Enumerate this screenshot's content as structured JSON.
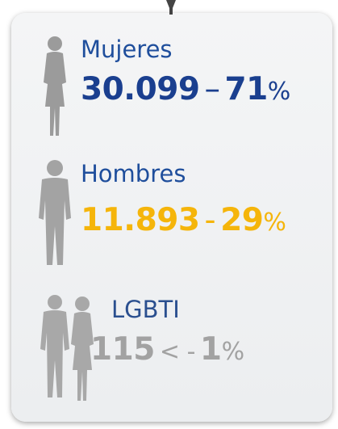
{
  "items": [
    {
      "label": "Mujeres",
      "count": "30.099",
      "separator": "–",
      "percent": "71",
      "unit": "%"
    },
    {
      "label": "Hombres",
      "count": "11.893",
      "separator": "-",
      "percent": "29",
      "unit": "%"
    },
    {
      "label": "LGBTI",
      "count": "115",
      "separator": "< -",
      "percent": "1",
      "unit": "%"
    }
  ]
}
